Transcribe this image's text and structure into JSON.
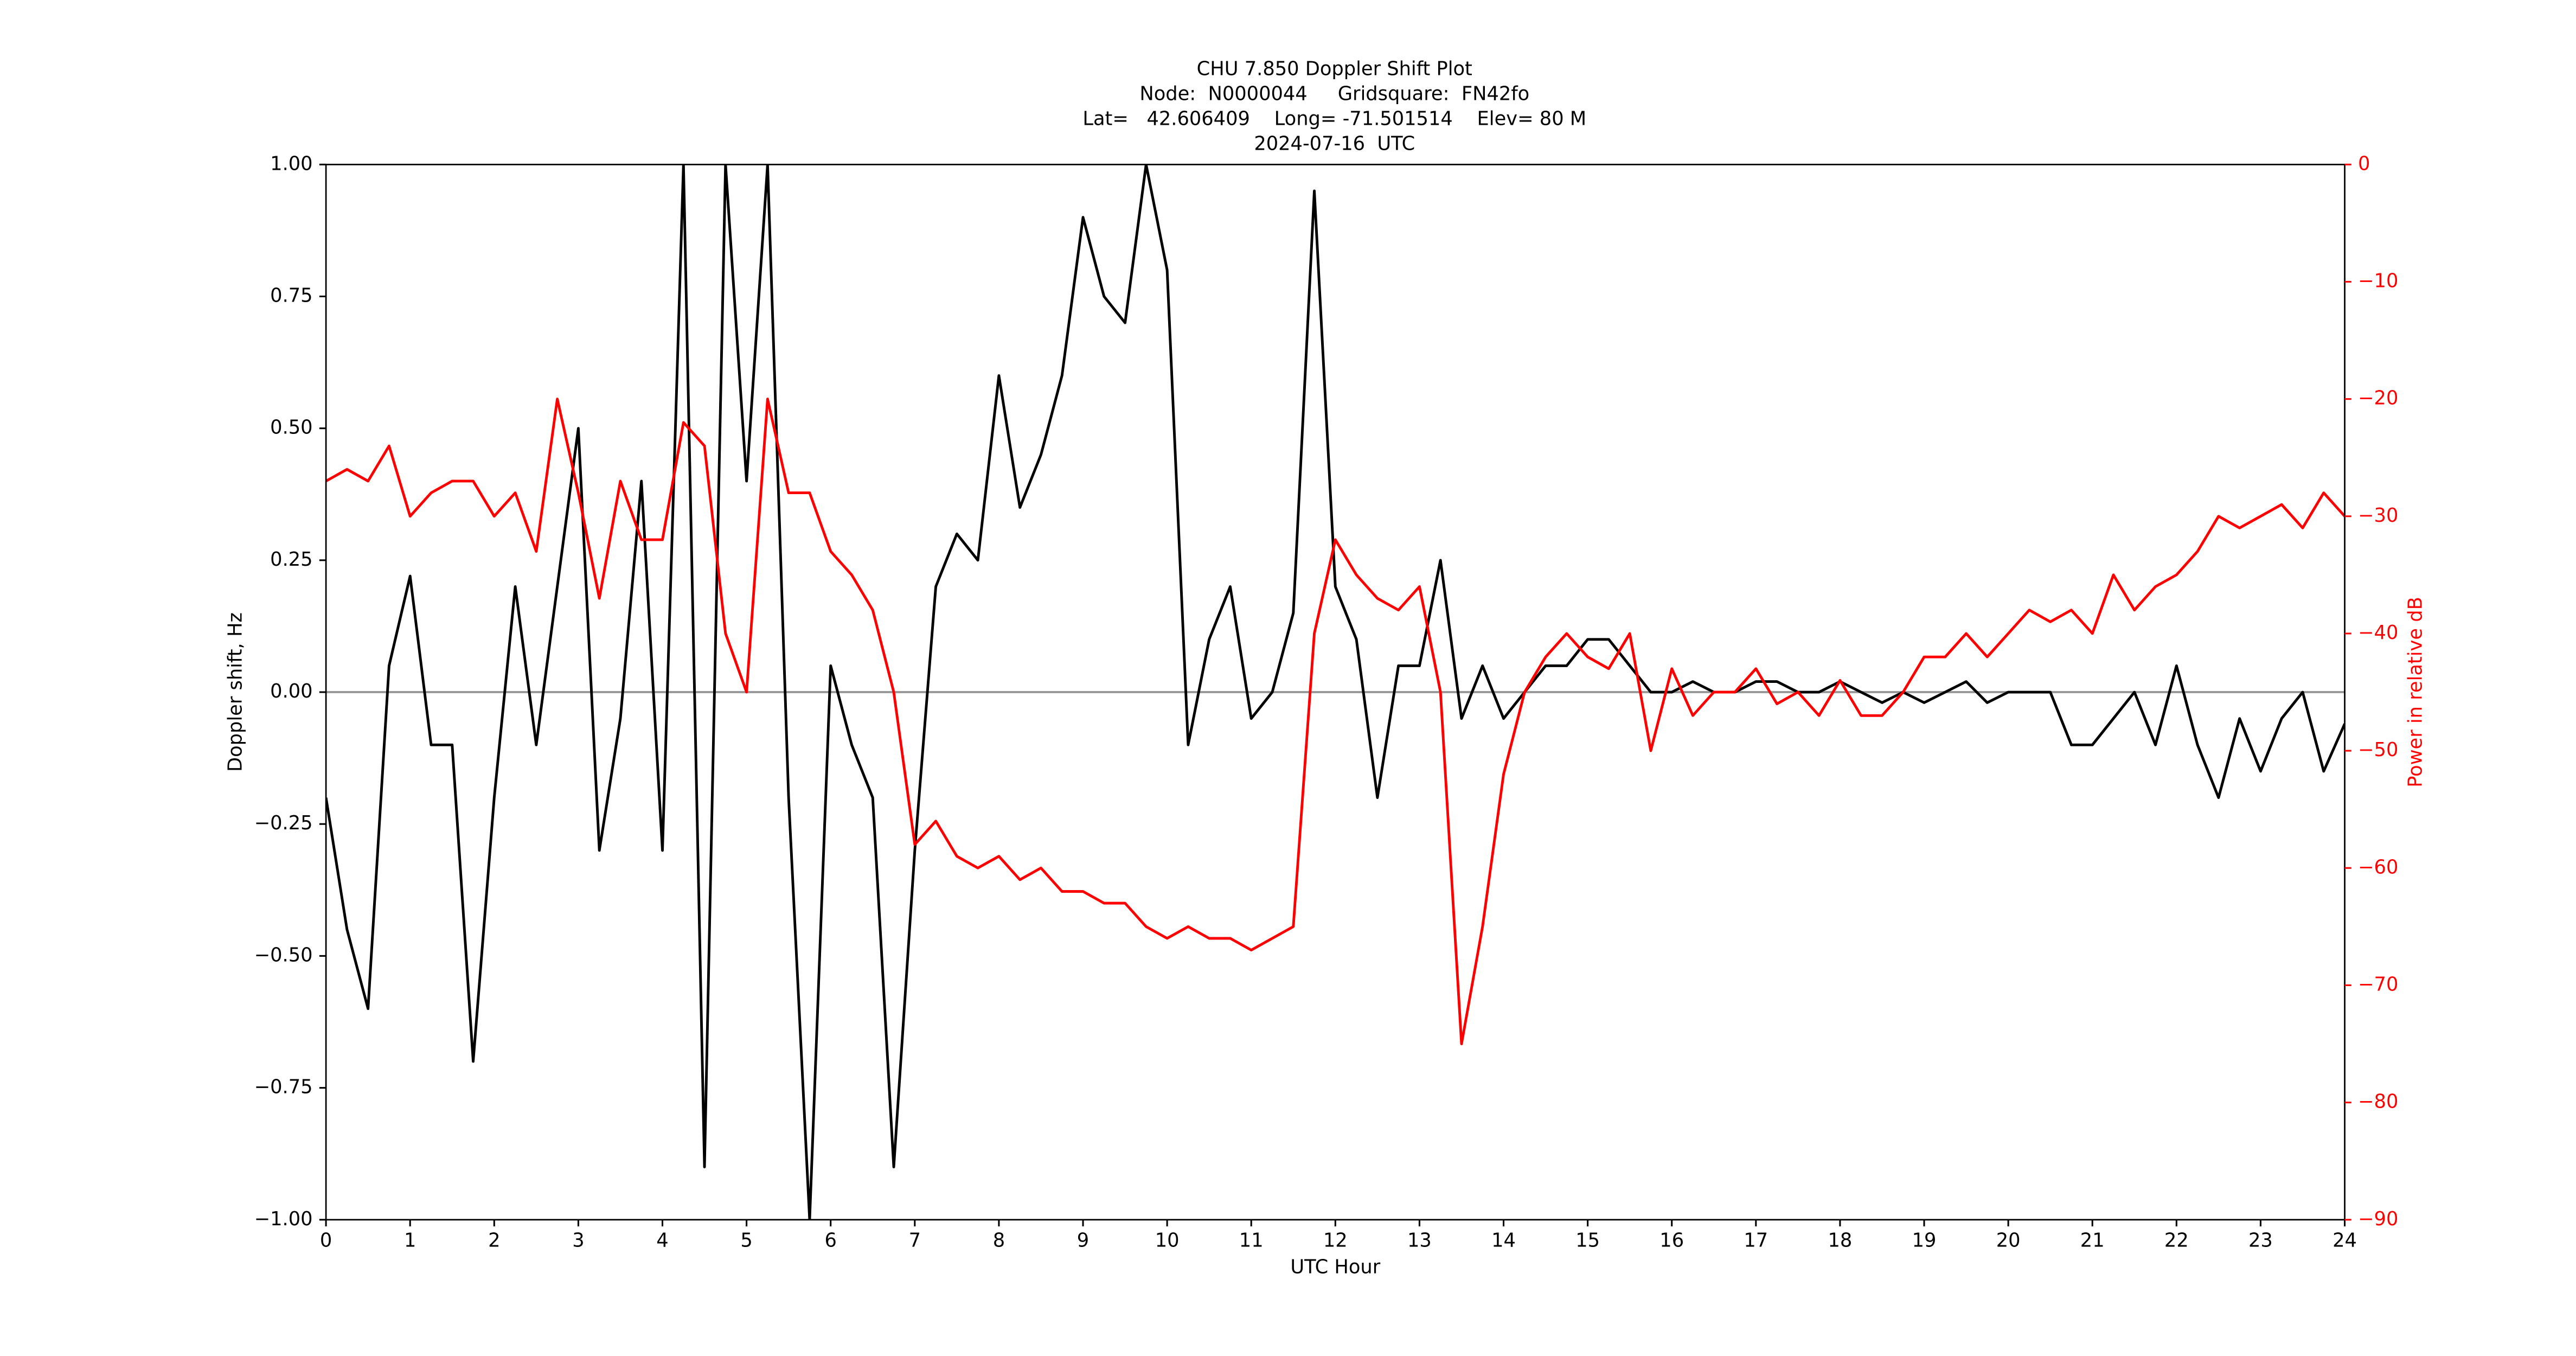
{
  "chart_data": {
    "type": "line",
    "title": [
      "CHU 7.850 Doppler Shift Plot",
      "Node:  N0000044     Gridsquare:  FN42fo",
      "Lat=   42.606409    Long= -71.501514    Elev= 80 M",
      "2024-07-16  UTC"
    ],
    "xlabel": "UTC Hour",
    "ylabel": "Doppler shift, Hz",
    "y2label": "Power in relative dB",
    "x": [
      0,
      0.25,
      0.5,
      0.75,
      1,
      1.25,
      1.5,
      1.75,
      2,
      2.25,
      2.5,
      2.75,
      3,
      3.25,
      3.5,
      3.75,
      4,
      4.25,
      4.5,
      4.75,
      5,
      5.25,
      5.5,
      5.75,
      6,
      6.25,
      6.5,
      6.75,
      7,
      7.25,
      7.5,
      7.75,
      8,
      8.25,
      8.5,
      8.75,
      9,
      9.25,
      9.5,
      9.75,
      10,
      10.25,
      10.5,
      10.75,
      11,
      11.25,
      11.5,
      11.75,
      12,
      12.25,
      12.5,
      12.75,
      13,
      13.25,
      13.5,
      13.75,
      14,
      14.25,
      14.5,
      14.75,
      15,
      15.25,
      15.5,
      15.75,
      16,
      16.25,
      16.5,
      16.75,
      17,
      17.25,
      17.5,
      17.75,
      18,
      18.25,
      18.5,
      18.75,
      19,
      19.25,
      19.5,
      19.75,
      20,
      20.25,
      20.5,
      20.75,
      21,
      21.25,
      21.5,
      21.75,
      22,
      22.25,
      22.5,
      22.75,
      23,
      23.25,
      23.5,
      23.75,
      24
    ],
    "series": [
      {
        "name": "Doppler shift",
        "color": "#000000",
        "axis": "y",
        "values": [
          -0.2,
          -0.45,
          -0.6,
          0.05,
          0.22,
          -0.1,
          -0.1,
          -0.7,
          -0.2,
          0.2,
          -0.1,
          0.2,
          0.5,
          -0.3,
          -0.05,
          0.4,
          -0.3,
          1.0,
          -0.9,
          1.0,
          0.4,
          1.0,
          -0.2,
          -1.0,
          0.05,
          -0.1,
          -0.2,
          -0.9,
          -0.3,
          0.2,
          0.3,
          0.25,
          0.6,
          0.35,
          0.45,
          0.6,
          0.9,
          0.75,
          0.7,
          1.0,
          0.8,
          -0.1,
          0.1,
          0.2,
          -0.05,
          0.0,
          0.15,
          0.95,
          0.2,
          0.1,
          -0.2,
          0.05,
          0.05,
          0.25,
          -0.05,
          0.05,
          -0.05,
          0.0,
          0.05,
          0.05,
          0.1,
          0.1,
          0.05,
          0.0,
          0.0,
          0.02,
          0.0,
          0.0,
          0.02,
          0.02,
          0.0,
          0.0,
          0.02,
          0.0,
          -0.02,
          0.0,
          -0.02,
          0.0,
          0.02,
          -0.02,
          0.0,
          0.0,
          0.0,
          -0.1,
          -0.1,
          -0.05,
          0.0,
          -0.1,
          0.05,
          -0.1,
          -0.2,
          -0.05,
          -0.15,
          -0.05,
          0.0,
          -0.15,
          -0.06
        ]
      },
      {
        "name": "Power",
        "color": "#ff0000",
        "axis": "y2",
        "values": [
          -27,
          -26,
          -27,
          -24,
          -30,
          -28,
          -27,
          -27,
          -30,
          -28,
          -33,
          -20,
          -28,
          -37,
          -27,
          -32,
          -32,
          -22,
          -24,
          -40,
          -45,
          -20,
          -28,
          -28,
          -33,
          -35,
          -38,
          -45,
          -58,
          -56,
          -59,
          -60,
          -59,
          -61,
          -60,
          -62,
          -62,
          -63,
          -63,
          -65,
          -66,
          -65,
          -66,
          -66,
          -67,
          -66,
          -65,
          -40,
          -32,
          -35,
          -37,
          -38,
          -36,
          -45,
          -75,
          -65,
          -52,
          -45,
          -42,
          -40,
          -42,
          -43,
          -40,
          -50,
          -43,
          -47,
          -45,
          -45,
          -43,
          -46,
          -45,
          -47,
          -44,
          -47,
          -47,
          -45,
          -42,
          -42,
          -40,
          -42,
          -40,
          -38,
          -39,
          -38,
          -40,
          -35,
          -38,
          -36,
          -35,
          -33,
          -30,
          -31,
          -30,
          -29,
          -31,
          -28,
          -30
        ]
      }
    ],
    "xlim": [
      0,
      24
    ],
    "xticks": [
      0,
      1,
      2,
      3,
      4,
      5,
      6,
      7,
      8,
      9,
      10,
      11,
      12,
      13,
      14,
      15,
      16,
      17,
      18,
      19,
      20,
      21,
      22,
      23,
      24
    ],
    "ylim": [
      -1,
      1
    ],
    "yticks": [
      {
        "value": 1,
        "label": "1.00"
      },
      {
        "value": 0.75,
        "label": "0.75"
      },
      {
        "value": 0.5,
        "label": "0.50"
      },
      {
        "value": 0.25,
        "label": "0.25"
      },
      {
        "value": 0,
        "label": "0.00"
      },
      {
        "value": -0.25,
        "label": "−0.25"
      },
      {
        "value": -0.5,
        "label": "−0.50"
      },
      {
        "value": -0.75,
        "label": "−0.75"
      },
      {
        "value": -1,
        "label": "−1.00"
      }
    ],
    "y2lim": [
      -90,
      0
    ],
    "y2ticks": [
      0,
      {
        "value": -10,
        "label": "−10"
      },
      {
        "value": -20,
        "label": "−20"
      },
      {
        "value": -30,
        "label": "−30"
      },
      {
        "value": -40,
        "label": "−40"
      },
      {
        "value": -50,
        "label": "−50"
      },
      {
        "value": -60,
        "label": "−60"
      },
      {
        "value": -70,
        "label": "−70"
      },
      {
        "value": -80,
        "label": "−80"
      },
      {
        "value": -90,
        "label": "−90"
      }
    ],
    "y2color": "#ff0000",
    "hline": 0,
    "hline_color": "#999999"
  }
}
